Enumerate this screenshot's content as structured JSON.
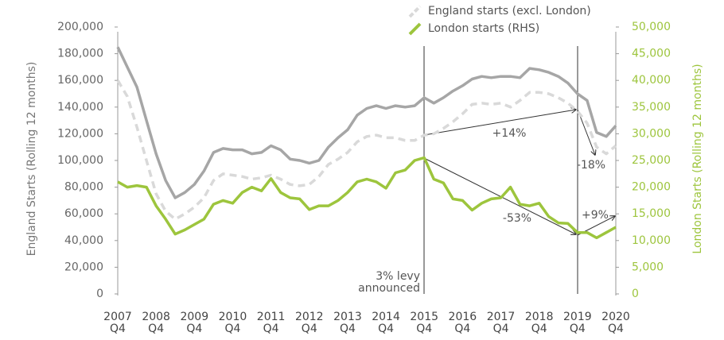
{
  "chart_data": {
    "type": "line",
    "categories": [
      "2007\nQ4",
      null,
      null,
      null,
      "2008\nQ4",
      null,
      null,
      null,
      "2009\nQ4",
      null,
      null,
      null,
      "2010\nQ4",
      null,
      null,
      null,
      "2011\nQ4",
      null,
      null,
      null,
      "2012\nQ4",
      null,
      null,
      null,
      "2013\nQ4",
      null,
      null,
      null,
      "2014\nQ4",
      null,
      null,
      null,
      "2015\nQ4",
      null,
      null,
      null,
      "2016\nQ4",
      null,
      null,
      null,
      "2017\nQ4",
      null,
      null,
      null,
      "2018\nQ4",
      null,
      null,
      null,
      "2019\nQ4",
      null,
      null,
      null,
      "2020\nQ4"
    ],
    "series": [
      {
        "name": "England starts",
        "color": "#a6a6a6",
        "dash": false,
        "values": [
          185000,
          170000,
          155000,
          130000,
          105000,
          85000,
          72000,
          76000,
          82000,
          92000,
          106000,
          109000,
          108000,
          108000,
          105000,
          106000,
          111000,
          108000,
          101000,
          100000,
          98000,
          100000,
          110000,
          117000,
          123000,
          134000,
          139000,
          141000,
          139000,
          141000,
          140000,
          141000,
          147000,
          143000,
          147000,
          152000,
          156000,
          161000,
          163000,
          162000,
          163000,
          163000,
          162000,
          169000,
          168000,
          166000,
          163000,
          158000,
          150000,
          145000,
          121000,
          118000,
          126000
        ]
      },
      {
        "name": "England starts (excl. London)",
        "color": "#d9d9d9",
        "dash": true,
        "values": [
          160000,
          148000,
          125000,
          100000,
          75000,
          62000,
          56000,
          60000,
          65000,
          72000,
          85000,
          90000,
          89000,
          88000,
          86000,
          87000,
          89000,
          86000,
          82000,
          81000,
          82000,
          88000,
          97000,
          101000,
          106000,
          114000,
          118000,
          119000,
          117000,
          117000,
          115000,
          115000,
          119000,
          120000,
          124000,
          129000,
          135000,
          142000,
          143000,
          142000,
          143000,
          140000,
          145000,
          151000,
          151000,
          150000,
          147000,
          143000,
          137000,
          128000,
          110000,
          105000,
          111000
        ]
      },
      {
        "name": "London starts (RHS)",
        "color": "#9dc53d",
        "axis": "y2",
        "dash": false,
        "values": [
          21000,
          20000,
          20300,
          20000,
          16500,
          14000,
          11200,
          12000,
          13000,
          14000,
          16800,
          17500,
          17000,
          19000,
          20000,
          19300,
          21600,
          19000,
          18000,
          17800,
          15800,
          16500,
          16500,
          17500,
          19000,
          21000,
          21500,
          21000,
          19800,
          22700,
          23200,
          25000,
          25500,
          21500,
          20800,
          17800,
          17500,
          15700,
          17000,
          17800,
          18000,
          20000,
          16800,
          16500,
          17000,
          14500,
          13300,
          13200,
          11500,
          11500,
          10500,
          11500,
          12500
        ]
      }
    ],
    "ylabel": "England Starts (Rolling 12 months)",
    "y2label": "London Starts (Rolling 12 months)",
    "ylim": [
      0,
      200000
    ],
    "yticks": [
      0,
      {
        "value": 20000,
        "label": "20,000"
      },
      {
        "value": 40000,
        "label": "40,000"
      },
      {
        "value": 60000,
        "label": "60,000"
      },
      {
        "value": 80000,
        "label": "80,000"
      },
      {
        "value": 100000,
        "label": "100,000"
      },
      {
        "value": 120000,
        "label": "120,000"
      },
      {
        "value": 140000,
        "label": "140,000"
      },
      {
        "value": 160000,
        "label": "160,000"
      },
      {
        "value": 180000,
        "label": "180,000"
      },
      {
        "value": 200000,
        "label": "200,000"
      }
    ],
    "y2lim": [
      0,
      50000
    ],
    "y2ticks": [
      0,
      {
        "value": 5000,
        "label": "5,000"
      },
      {
        "value": 10000,
        "label": "10,000"
      },
      {
        "value": 15000,
        "label": "15,000"
      },
      {
        "value": 20000,
        "label": "20,000"
      },
      {
        "value": 25000,
        "label": "25,000"
      },
      {
        "value": 30000,
        "label": "30,000"
      },
      {
        "value": 35000,
        "label": "35,000"
      },
      {
        "value": 40000,
        "label": "40,000"
      },
      {
        "value": 45000,
        "label": "45,000"
      },
      {
        "value": 50000,
        "label": "50,000"
      }
    ],
    "annotations": [
      "3% levy\nannounced",
      "+14%",
      "-18%",
      "-53%",
      "+9%"
    ]
  }
}
